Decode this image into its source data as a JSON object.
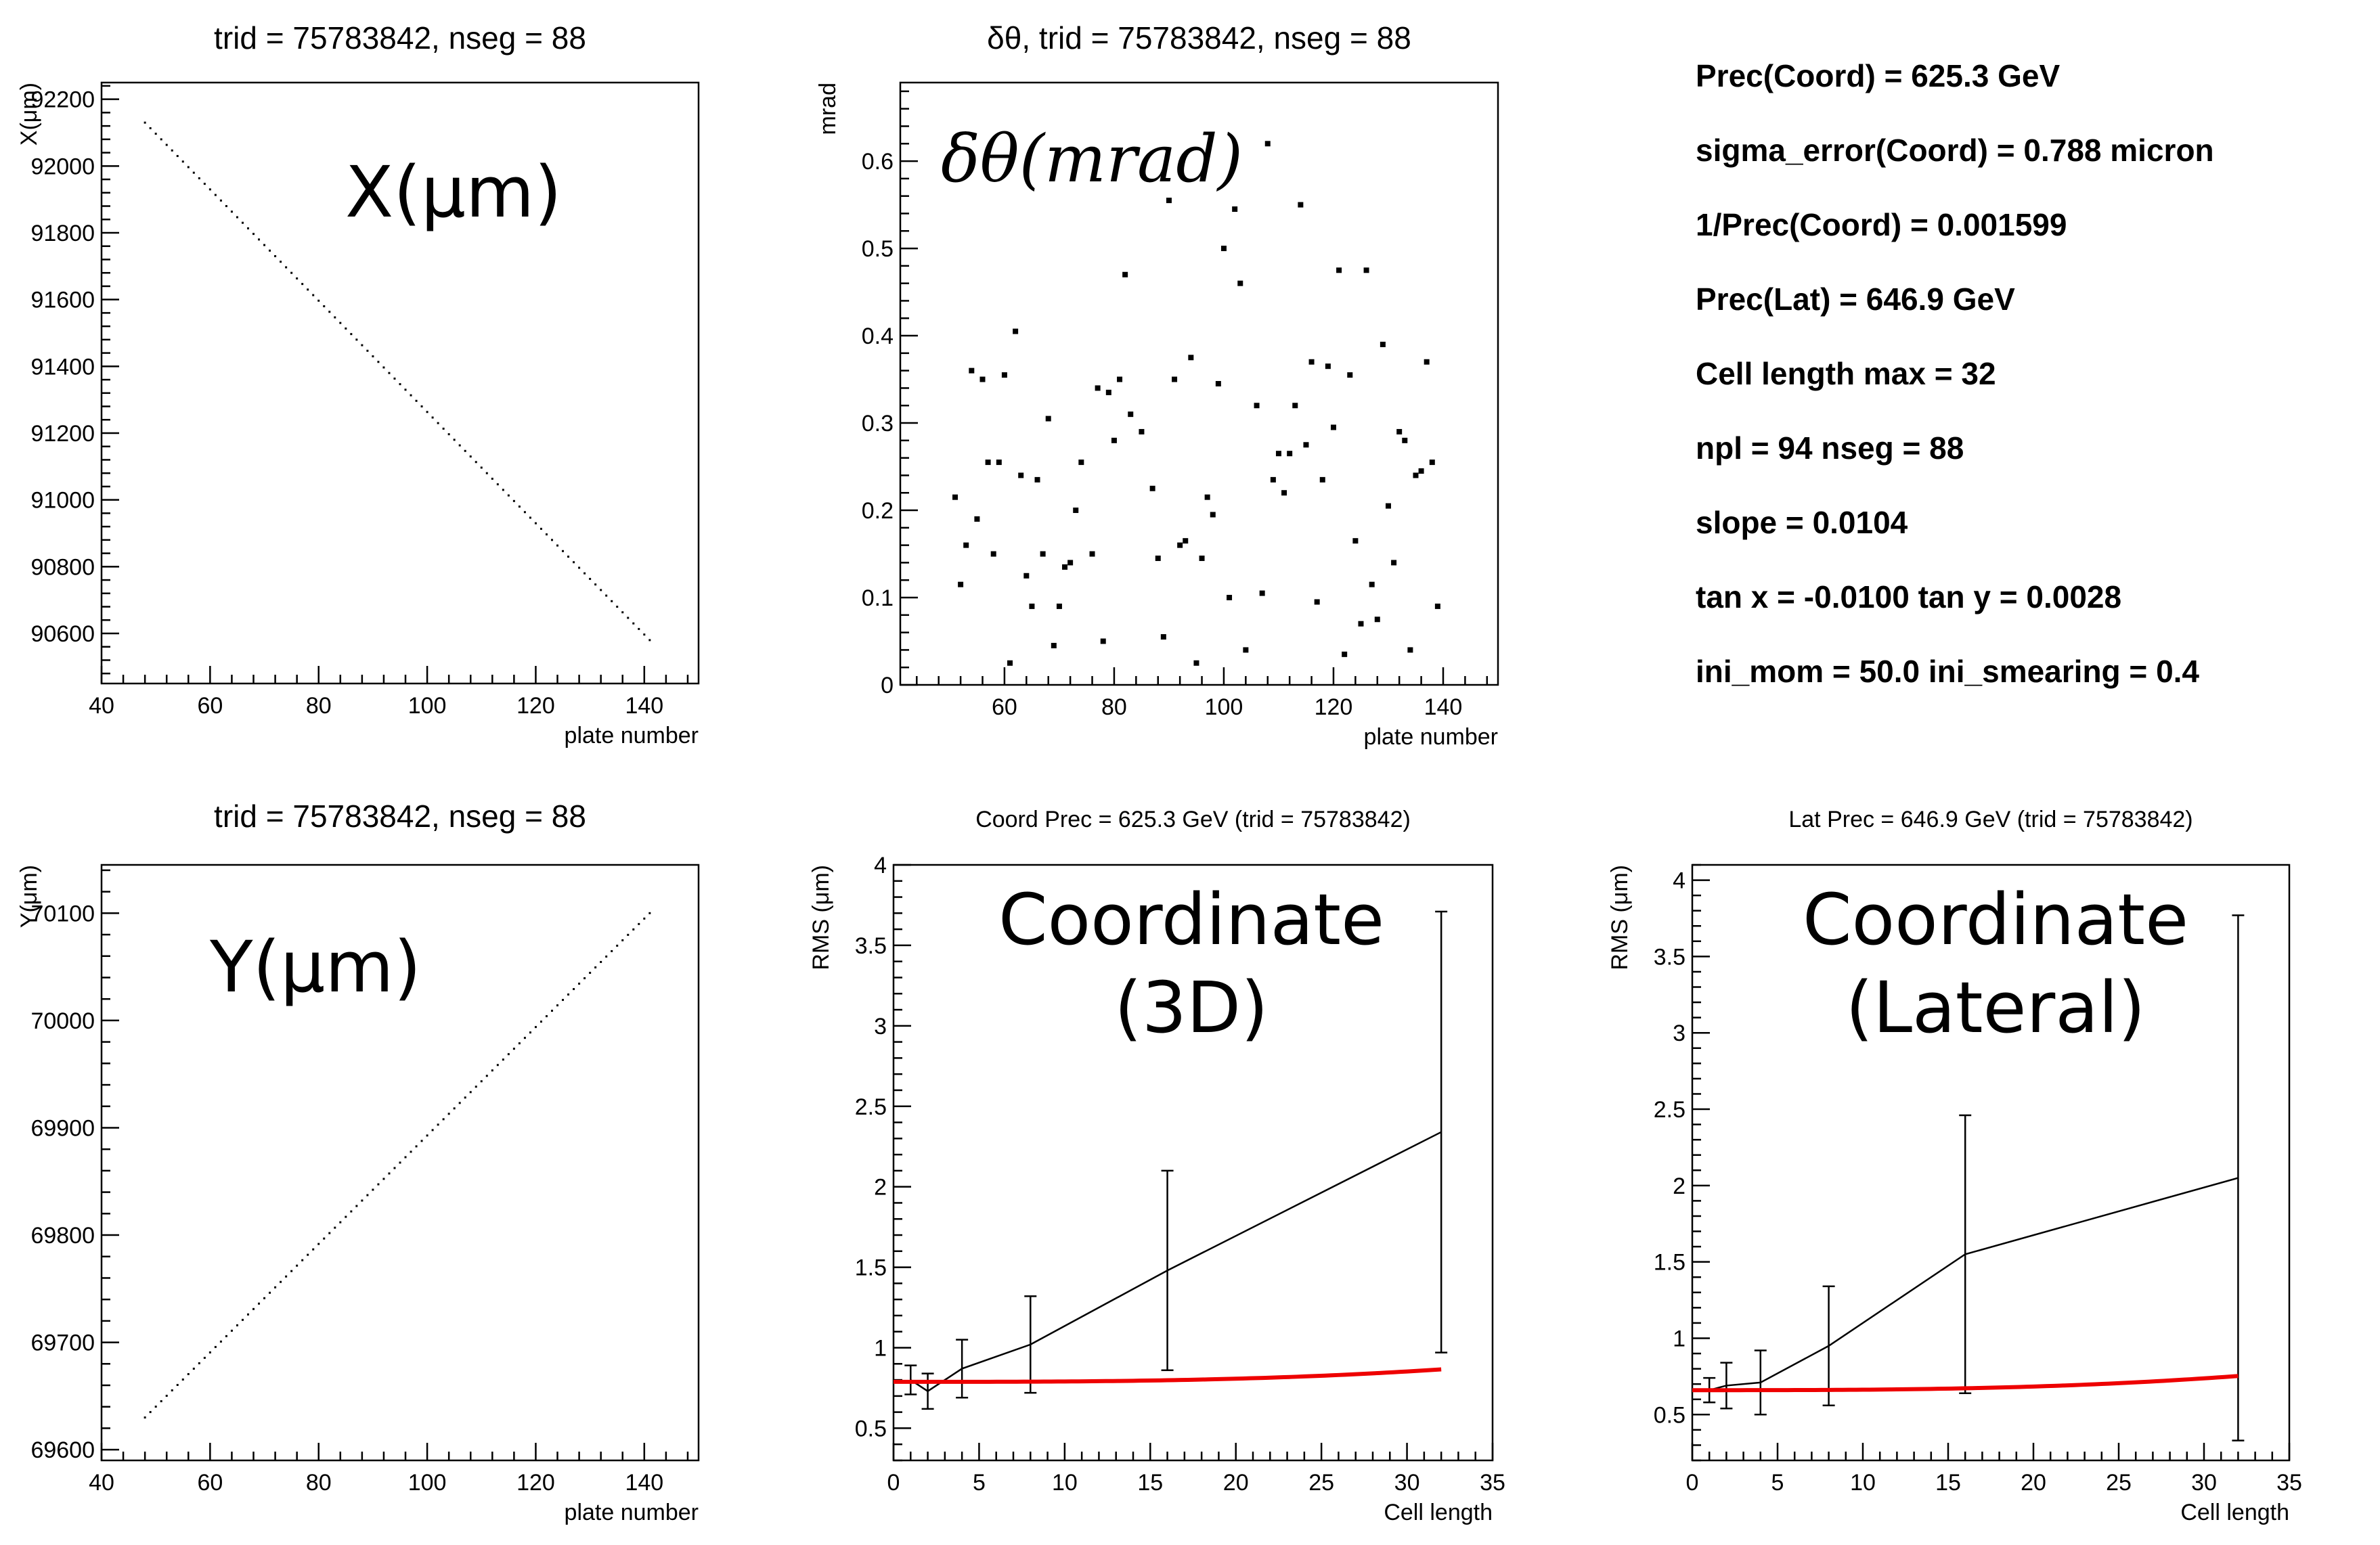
{
  "info_panel": {
    "lines": [
      "Prec(Coord) = 625.3 GeV",
      "sigma_error(Coord) = 0.788 micron",
      "1/Prec(Coord) = 0.001599",
      "Prec(Lat) = 646.9 GeV",
      "Cell length max = 32",
      "npl = 94  nseg = 88",
      "slope = 0.0104",
      "tan x = -0.0100  tan y = 0.0028",
      "ini_mom = 50.0  ini_smearing = 0.4"
    ]
  },
  "chart_data": [
    {
      "id": "x_plot",
      "type": "scatter",
      "title": "trid = 75783842,  nseg = 88",
      "xlabel": "plate number",
      "ylabel": "X(μm)",
      "annotation": "X(μm)",
      "xlim": [
        40,
        150
      ],
      "ylim": [
        90450,
        92250
      ],
      "xticks": [
        40,
        60,
        80,
        100,
        120,
        140
      ],
      "yticks": [
        90600,
        90800,
        91000,
        91200,
        91400,
        91600,
        91800,
        92000,
        92200
      ],
      "line": {
        "x_start": 48,
        "x_end": 141,
        "y_start": 92130,
        "y_end": 90580
      },
      "n_points": 94
    },
    {
      "id": "dtheta_plot",
      "type": "scatter",
      "title": "δθ,  trid = 75783842,  nseg = 88",
      "xlabel": "plate number",
      "ylabel": "mrad",
      "annotation": "δθ(mrad)",
      "xlim": [
        41,
        150
      ],
      "ylim": [
        0,
        0.69
      ],
      "xticks": [
        60,
        80,
        100,
        120,
        140
      ],
      "yticks": [
        0,
        0.1,
        0.2,
        0.3,
        0.4,
        0.5,
        0.6
      ],
      "points": [
        [
          51,
          0.215
        ],
        [
          52,
          0.115
        ],
        [
          53,
          0.16
        ],
        [
          54,
          0.36
        ],
        [
          55,
          0.19
        ],
        [
          56,
          0.35
        ],
        [
          57,
          0.255
        ],
        [
          58,
          0.15
        ],
        [
          59,
          0.255
        ],
        [
          60,
          0.355
        ],
        [
          61,
          0.025
        ],
        [
          63,
          0.24
        ],
        [
          64,
          0.125
        ],
        [
          65,
          0.09
        ],
        [
          66,
          0.235
        ],
        [
          67,
          0.15
        ],
        [
          68,
          0.305
        ],
        [
          69,
          0.045
        ],
        [
          70,
          0.09
        ],
        [
          71,
          0.135
        ],
        [
          72,
          0.14
        ],
        [
          73,
          0.2
        ],
        [
          76,
          0.15
        ],
        [
          77,
          0.34
        ],
        [
          78,
          0.05
        ],
        [
          79,
          0.335
        ],
        [
          80,
          0.28
        ],
        [
          81,
          0.35
        ],
        [
          82,
          0.47
        ],
        [
          83,
          0.31
        ],
        [
          85,
          0.29
        ],
        [
          87,
          0.225
        ],
        [
          88,
          0.145
        ],
        [
          89,
          0.055
        ],
        [
          91,
          0.35
        ],
        [
          92,
          0.16
        ],
        [
          93,
          0.165
        ],
        [
          94,
          0.375
        ],
        [
          95,
          0.025
        ],
        [
          96,
          0.145
        ],
        [
          97,
          0.215
        ],
        [
          98,
          0.195
        ],
        [
          99,
          0.345
        ],
        [
          100,
          0.5
        ],
        [
          101,
          0.1
        ],
        [
          102,
          0.545
        ],
        [
          103,
          0.46
        ],
        [
          104,
          0.04
        ],
        [
          106,
          0.32
        ],
        [
          107,
          0.105
        ],
        [
          108,
          0.62
        ],
        [
          109,
          0.235
        ],
        [
          110,
          0.265
        ],
        [
          111,
          0.22
        ],
        [
          112,
          0.265
        ],
        [
          113,
          0.32
        ],
        [
          114,
          0.55
        ],
        [
          115,
          0.275
        ],
        [
          116,
          0.37
        ],
        [
          117,
          0.095
        ],
        [
          118,
          0.235
        ],
        [
          119,
          0.365
        ],
        [
          120,
          0.295
        ],
        [
          121,
          0.475
        ],
        [
          122,
          0.035
        ],
        [
          123,
          0.355
        ],
        [
          124,
          0.165
        ],
        [
          125,
          0.07
        ],
        [
          126,
          0.475
        ],
        [
          127,
          0.115
        ],
        [
          128,
          0.075
        ],
        [
          129,
          0.39
        ],
        [
          130,
          0.205
        ],
        [
          131,
          0.14
        ],
        [
          132,
          0.29
        ],
        [
          133,
          0.28
        ],
        [
          134,
          0.04
        ],
        [
          135,
          0.24
        ],
        [
          136,
          0.245
        ],
        [
          137,
          0.37
        ],
        [
          138,
          0.255
        ],
        [
          139,
          0.09
        ],
        [
          90,
          0.555
        ],
        [
          74,
          0.255
        ],
        [
          62,
          0.405
        ]
      ]
    },
    {
      "id": "y_plot",
      "type": "scatter",
      "title": "trid = 75783842,  nseg = 88",
      "xlabel": "plate number",
      "ylabel": "Y(μm)",
      "annotation": "Y(μm)",
      "xlim": [
        40,
        150
      ],
      "ylim": [
        69590,
        70145
      ],
      "xticks": [
        40,
        60,
        80,
        100,
        120,
        140
      ],
      "yticks": [
        69600,
        69700,
        69800,
        69900,
        70000,
        70100
      ],
      "line": {
        "x_start": 48,
        "x_end": 141,
        "y_start": 69630,
        "y_end": 70100
      },
      "n_points": 94
    },
    {
      "id": "coord_prec",
      "type": "line",
      "title": "Coord Prec = 625.3 GeV (trid = 75783842)",
      "xlabel": "Cell length",
      "ylabel": "RMS (μm)",
      "annotation_lines": [
        "Coordinate",
        "(3D)"
      ],
      "xlim": [
        0,
        35
      ],
      "ylim": [
        0.3,
        4.0
      ],
      "xticks": [
        0,
        5,
        10,
        15,
        20,
        25,
        30,
        35
      ],
      "yticks": [
        0.5,
        1,
        1.5,
        2,
        2.5,
        3,
        3.5,
        4
      ],
      "series": [
        {
          "x": [
            1,
            2,
            4,
            8,
            16,
            32
          ],
          "y": [
            0.8,
            0.73,
            0.87,
            1.02,
            1.48,
            2.34
          ],
          "err": [
            0.09,
            0.11,
            0.18,
            0.3,
            0.62,
            1.37
          ]
        }
      ],
      "fit": {
        "a": 0.788,
        "b": 0.00198,
        "x_range": [
          0,
          32
        ]
      }
    },
    {
      "id": "lat_prec",
      "type": "line",
      "title": "Lat Prec = 646.9 GeV (trid = 75783842)",
      "xlabel": "Cell length",
      "ylabel": "RMS (μm)",
      "annotation_lines": [
        "Coordinate",
        "(Lateral)"
      ],
      "xlim": [
        0,
        35
      ],
      "ylim": [
        0.2,
        4.1
      ],
      "xticks": [
        0,
        5,
        10,
        15,
        20,
        25,
        30,
        35
      ],
      "yticks": [
        0.5,
        1,
        1.5,
        2,
        2.5,
        3,
        3.5,
        4
      ],
      "series": [
        {
          "x": [
            1,
            2,
            4,
            8,
            16,
            32
          ],
          "y": [
            0.66,
            0.69,
            0.71,
            0.95,
            1.55,
            2.05
          ],
          "err": [
            0.08,
            0.15,
            0.21,
            0.39,
            0.91,
            1.72
          ]
        }
      ],
      "fit": {
        "a": 0.66,
        "b": 0.002,
        "x_range": [
          0,
          32
        ]
      }
    }
  ]
}
